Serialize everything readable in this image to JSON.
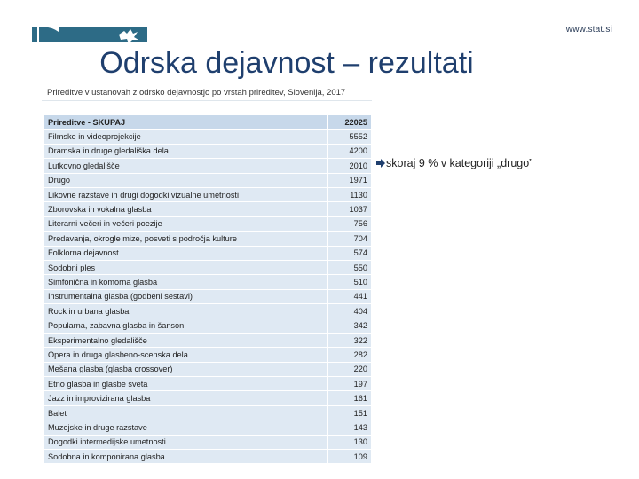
{
  "header": {
    "site_url": "www.stat.si",
    "title": "Odrska dejavnost – rezultati"
  },
  "table": {
    "caption": "Prireditve v ustanovah z odrsko dejavnostjo po vrstah prireditev, Slovenija, 2017",
    "header": {
      "label": "Prireditve - SKUPAJ",
      "value": "22025"
    },
    "rows": [
      {
        "label": "Filmske in videoprojekcije",
        "value": "5552"
      },
      {
        "label": "Dramska in druge gledališka dela",
        "value": "4200"
      },
      {
        "label": "Lutkovno gledališče",
        "value": "2010"
      },
      {
        "label": "Drugo",
        "value": "1971"
      },
      {
        "label": "Likovne razstave in drugi dogodki vizualne umetnosti",
        "value": "1130"
      },
      {
        "label": "Zborovska in vokalna glasba",
        "value": "1037"
      },
      {
        "label": "Literarni večeri in večeri poezije",
        "value": "756"
      },
      {
        "label": "Predavanja, okrogle mize, posveti s področja kulture",
        "value": "704"
      },
      {
        "label": "Folklorna dejavnost",
        "value": "574"
      },
      {
        "label": "Sodobni ples",
        "value": "550"
      },
      {
        "label": "Simfonična in komorna glasba",
        "value": "510"
      },
      {
        "label": "Instrumentalna glasba (godbeni sestavi)",
        "value": "441"
      },
      {
        "label": "Rock in urbana glasba",
        "value": "404"
      },
      {
        "label": "Popularna, zabavna glasba in šanson",
        "value": "342"
      },
      {
        "label": "Eksperimentalno gledališče",
        "value": "322"
      },
      {
        "label": "Opera in druga glasbeno-scenska dela",
        "value": "282"
      },
      {
        "label": "Mešana glasba (glasba crossover)",
        "value": "220"
      },
      {
        "label": "Etno glasba in glasbe sveta",
        "value": "197"
      },
      {
        "label": "Jazz in improvizirana glasba",
        "value": "161"
      },
      {
        "label": "Balet",
        "value": "151"
      },
      {
        "label": "Muzejske in druge razstave",
        "value": "143"
      },
      {
        "label": "Dogodki intermedijske umetnosti",
        "value": "130"
      },
      {
        "label": "Sodobna in komponirana glasba",
        "value": "109"
      }
    ]
  },
  "note": {
    "text": "skoraj 9 % v kategoriji „drugo”",
    "icon": "arrow-right-icon"
  },
  "colors": {
    "title": "#1f3f6e",
    "logo": "#2d6b86",
    "row_bg": "#dfe9f3",
    "header_bg": "#c7d8ea"
  }
}
